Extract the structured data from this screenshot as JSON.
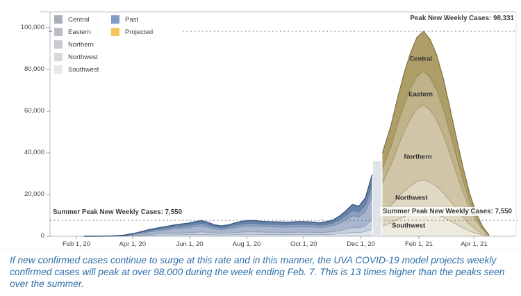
{
  "caption": "If new confirmed cases continue to surge at this rate and in this manner, the UVA COVID-19 model projects weekly confirmed cases will peak at over 98,000 during the week ending Feb. 7. This is 13 times higher than the peaks seen over the summer.",
  "legend": {
    "regions": [
      {
        "label": "Central",
        "color": "#a9aeb7"
      },
      {
        "label": "Eastern",
        "color": "#b8bcc4"
      },
      {
        "label": "Northern",
        "color": "#c8cbd1"
      },
      {
        "label": "Northwest",
        "color": "#d7d9de"
      },
      {
        "label": "Southwest",
        "color": "#e6e7eb"
      }
    ],
    "series": [
      {
        "label": "Past",
        "color": "#7d9cc8"
      },
      {
        "label": "Projected",
        "color": "#f6c45f"
      }
    ]
  },
  "colors": {
    "past_base": "#3e6092",
    "projected_base": "#96813b",
    "past_stroke": "#38547e",
    "projected_stroke": "#6c5e2c",
    "reference_line": "#9b9b9b",
    "transition_strip": "#dde1e6",
    "caption_blue": "#2f6ea8"
  },
  "chart_data": {
    "type": "area",
    "stacked": true,
    "title": "",
    "xlabel": "",
    "ylabel": "",
    "ylim": [
      0,
      100000
    ],
    "grid": false,
    "legend_position": "top-left",
    "y_ticks": [
      {
        "value": 0,
        "label": "0"
      },
      {
        "value": 20000,
        "label": "20,000"
      },
      {
        "value": 40000,
        "label": "40,000"
      },
      {
        "value": 60000,
        "label": "60,000"
      },
      {
        "value": 80000,
        "label": "80,000"
      },
      {
        "value": 100000,
        "label": "100,000"
      }
    ],
    "x_ticks": [
      {
        "date": "2020-02-01",
        "label": "Feb 1, 20"
      },
      {
        "date": "2020-04-01",
        "label": "Apr 1, 20"
      },
      {
        "date": "2020-06-01",
        "label": "Jun 1, 20"
      },
      {
        "date": "2020-08-01",
        "label": "Aug 1, 20"
      },
      {
        "date": "2020-10-01",
        "label": "Oct 1, 20"
      },
      {
        "date": "2020-12-01",
        "label": "Dec 1, 20"
      },
      {
        "date": "2021-02-01",
        "label": "Feb 1, 21"
      },
      {
        "date": "2021-04-01",
        "label": "Apr 1, 21"
      }
    ],
    "regions": [
      {
        "name": "Southwest",
        "share": 0.12
      },
      {
        "name": "Northwest",
        "share": 0.155
      },
      {
        "name": "Northern",
        "share": 0.365
      },
      {
        "name": "Eastern",
        "share": 0.165
      },
      {
        "name": "Central",
        "share": 0.195
      }
    ],
    "past": {
      "name": "Past",
      "dates": [
        "2020-02-09",
        "2020-02-23",
        "2020-03-08",
        "2020-03-22",
        "2020-04-05",
        "2020-04-19",
        "2020-05-03",
        "2020-05-17",
        "2020-05-31",
        "2020-06-07",
        "2020-06-14",
        "2020-06-21",
        "2020-06-28",
        "2020-07-05",
        "2020-07-12",
        "2020-07-19",
        "2020-07-26",
        "2020-08-02",
        "2020-08-09",
        "2020-08-16",
        "2020-08-23",
        "2020-08-30",
        "2020-09-13",
        "2020-09-27",
        "2020-10-04",
        "2020-10-11",
        "2020-10-18",
        "2020-10-25",
        "2020-11-01",
        "2020-11-08",
        "2020-11-15",
        "2020-11-22",
        "2020-11-29",
        "2020-12-06",
        "2020-12-13"
      ],
      "totals": [
        0,
        40,
        120,
        450,
        1600,
        3200,
        4400,
        5500,
        6300,
        7000,
        7500,
        6600,
        5400,
        4900,
        5400,
        6300,
        7100,
        7500,
        7550,
        7200,
        7000,
        6900,
        6700,
        7050,
        6900,
        6800,
        6400,
        6950,
        7700,
        9600,
        12200,
        15200,
        14400,
        18500,
        29500
      ]
    },
    "projected": {
      "name": "Projected",
      "dates": [
        "2020-12-24",
        "2021-01-02",
        "2021-01-09",
        "2021-01-16",
        "2021-01-23",
        "2021-01-30",
        "2021-02-06",
        "2021-02-13",
        "2021-02-20",
        "2021-02-27",
        "2021-03-06",
        "2021-03-13",
        "2021-03-20",
        "2021-03-27",
        "2021-04-03",
        "2021-04-10",
        "2021-04-17"
      ],
      "totals": [
        40000,
        53000,
        66000,
        78000,
        88000,
        95500,
        98331,
        94500,
        87000,
        76000,
        62000,
        47500,
        33500,
        21000,
        11500,
        4800,
        600
      ]
    },
    "transition_gap": {
      "start": "2020-12-14",
      "end": "2020-12-23"
    },
    "annotations": {
      "peak_line": {
        "value": 98331,
        "label": "Peak New Weekly Cases: 98,331"
      },
      "summer_line": {
        "value": 7550,
        "label": "Summer Peak New Weekly Cases: 7,550"
      }
    },
    "region_labels": [
      {
        "label": "Central",
        "date": "2021-02-03",
        "value": 85000
      },
      {
        "label": "Eastern",
        "date": "2021-02-03",
        "value": 68000
      },
      {
        "label": "Northern",
        "date": "2021-01-31",
        "value": 38000
      },
      {
        "label": "Northwest",
        "date": "2021-01-24",
        "value": 18300
      },
      {
        "label": "Southwest",
        "date": "2021-01-21",
        "value": 5000
      }
    ]
  }
}
